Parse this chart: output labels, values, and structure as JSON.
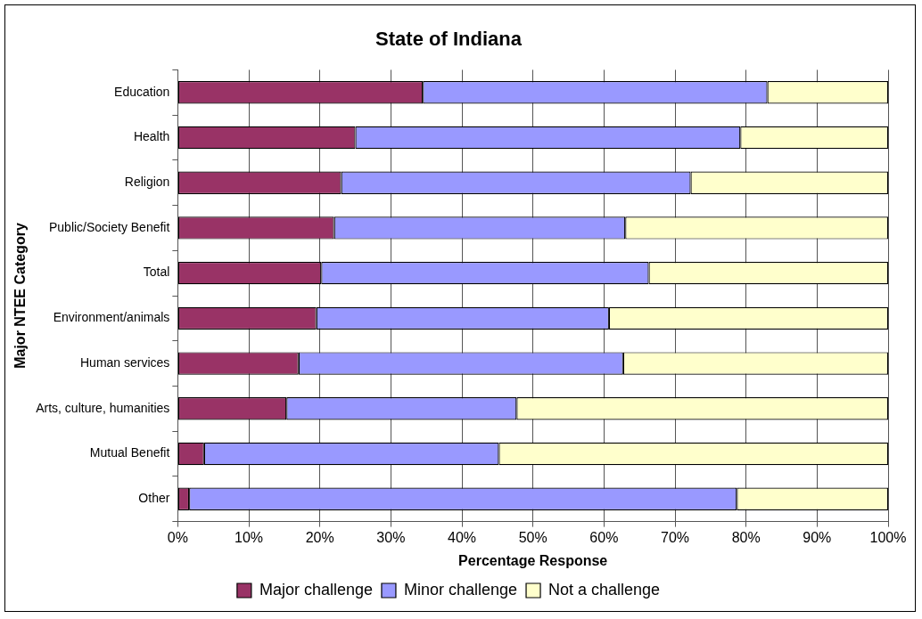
{
  "chart_data": {
    "type": "bar",
    "orientation": "horizontal",
    "stacked": true,
    "title": "State of Indiana",
    "xlabel": "Percentage Response",
    "ylabel": "Major NTEE Category",
    "categories": [
      "Education",
      "Health",
      "Religion",
      "Public/Society Benefit",
      "Total",
      "Environment/animals",
      "Human services",
      "Arts, culture, humanities",
      "Mutual Benefit",
      "Other"
    ],
    "series": [
      {
        "name": "Major challenge",
        "color": "#993366",
        "values": [
          34.5,
          25,
          23,
          22,
          20.2,
          19.5,
          17,
          15.3,
          3.7,
          1.6
        ]
      },
      {
        "name": "Minor challenge",
        "color": "#9999ff",
        "values": [
          48.5,
          54.2,
          49.2,
          41,
          46.1,
          41.2,
          45.7,
          32.4,
          41.5,
          77.1
        ]
      },
      {
        "name": "Not a challenge",
        "color": "#ffffcc",
        "values": [
          17,
          20.8,
          27.8,
          37,
          33.7,
          39.3,
          37.3,
          52.3,
          54.8,
          21.3
        ]
      }
    ],
    "xlim": [
      0,
      100
    ],
    "xticks": [
      {
        "value": 0,
        "label": "0%"
      },
      {
        "value": 10,
        "label": "10%"
      },
      {
        "value": 20,
        "label": "20%"
      },
      {
        "value": 30,
        "label": "30%"
      },
      {
        "value": 40,
        "label": "40%"
      },
      {
        "value": 50,
        "label": "50%"
      },
      {
        "value": 60,
        "label": "60%"
      },
      {
        "value": 70,
        "label": "70%"
      },
      {
        "value": 80,
        "label": "80%"
      },
      {
        "value": 90,
        "label": "90%"
      },
      {
        "value": 100,
        "label": "100%"
      }
    ],
    "grid": "x",
    "legend": "bottom"
  }
}
